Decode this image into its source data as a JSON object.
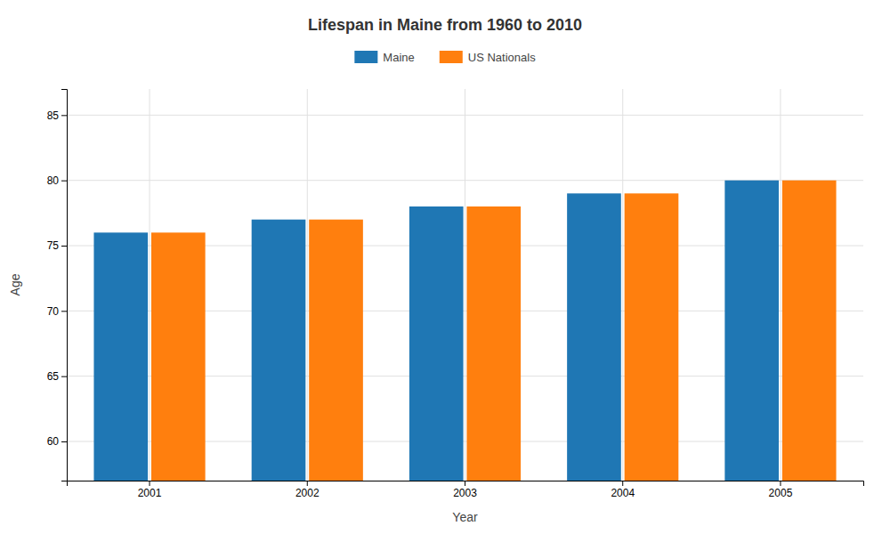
{
  "chart_data": {
    "type": "bar",
    "title": "Lifespan in Maine from 1960 to 2010",
    "x_label": "Year",
    "y_label": "Age",
    "categories": [
      "2001",
      "2002",
      "2003",
      "2004",
      "2005"
    ],
    "series": [
      {
        "name": "Maine",
        "values": [
          76,
          77,
          78,
          79,
          80
        ]
      },
      {
        "name": "US Nationals",
        "values": [
          76,
          77,
          78,
          79,
          80
        ]
      }
    ],
    "ylim": [
      57,
      87
    ],
    "yticks": [
      60,
      65,
      70,
      75,
      80,
      85
    ],
    "grid": true,
    "legend": "top"
  }
}
